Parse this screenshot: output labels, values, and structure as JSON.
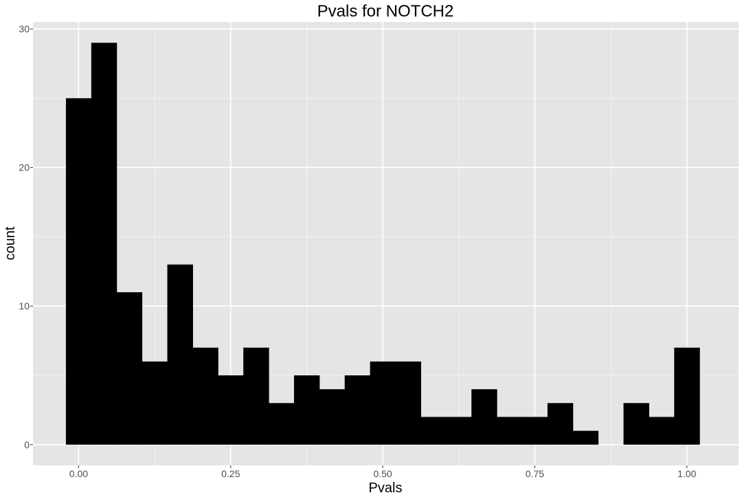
{
  "chart_data": {
    "type": "bar",
    "title": "Pvals for NOTCH2",
    "xlabel": "Pvals",
    "ylabel": "count",
    "bin_width": 0.0417,
    "bin_centers": [
      0.0,
      0.0417,
      0.0833,
      0.125,
      0.1667,
      0.2083,
      0.25,
      0.2917,
      0.3333,
      0.375,
      0.4167,
      0.4583,
      0.5,
      0.5417,
      0.5833,
      0.625,
      0.6667,
      0.7083,
      0.75,
      0.7917,
      0.8333,
      0.875,
      0.9167,
      0.9583,
      1.0
    ],
    "values": [
      25,
      29,
      11,
      6,
      13,
      7,
      5,
      7,
      3,
      5,
      4,
      5,
      6,
      6,
      2,
      2,
      4,
      2,
      2,
      3,
      1,
      0,
      3,
      2,
      7
    ],
    "xlim": [
      -0.075,
      1.085
    ],
    "ylim": [
      -1.5,
      30.5
    ],
    "xticks": [
      {
        "value": 0.0,
        "label": "0.00"
      },
      {
        "value": 0.25,
        "label": "0.25"
      },
      {
        "value": 0.5,
        "label": "0.50"
      },
      {
        "value": 0.75,
        "label": "0.75"
      },
      {
        "value": 1.0,
        "label": "1.00"
      }
    ],
    "yticks": [
      {
        "value": 0,
        "label": "0"
      },
      {
        "value": 10,
        "label": "10"
      },
      {
        "value": 20,
        "label": "20"
      },
      {
        "value": 30,
        "label": "30"
      }
    ],
    "grid": true,
    "colors": {
      "panel_background": "#e5e5e5",
      "grid_major": "#ffffff",
      "grid_minor": "#f2f2f2",
      "bar_fill": "#000000",
      "tick_text": "#4d4d4d",
      "tick_mark": "#333333"
    }
  }
}
